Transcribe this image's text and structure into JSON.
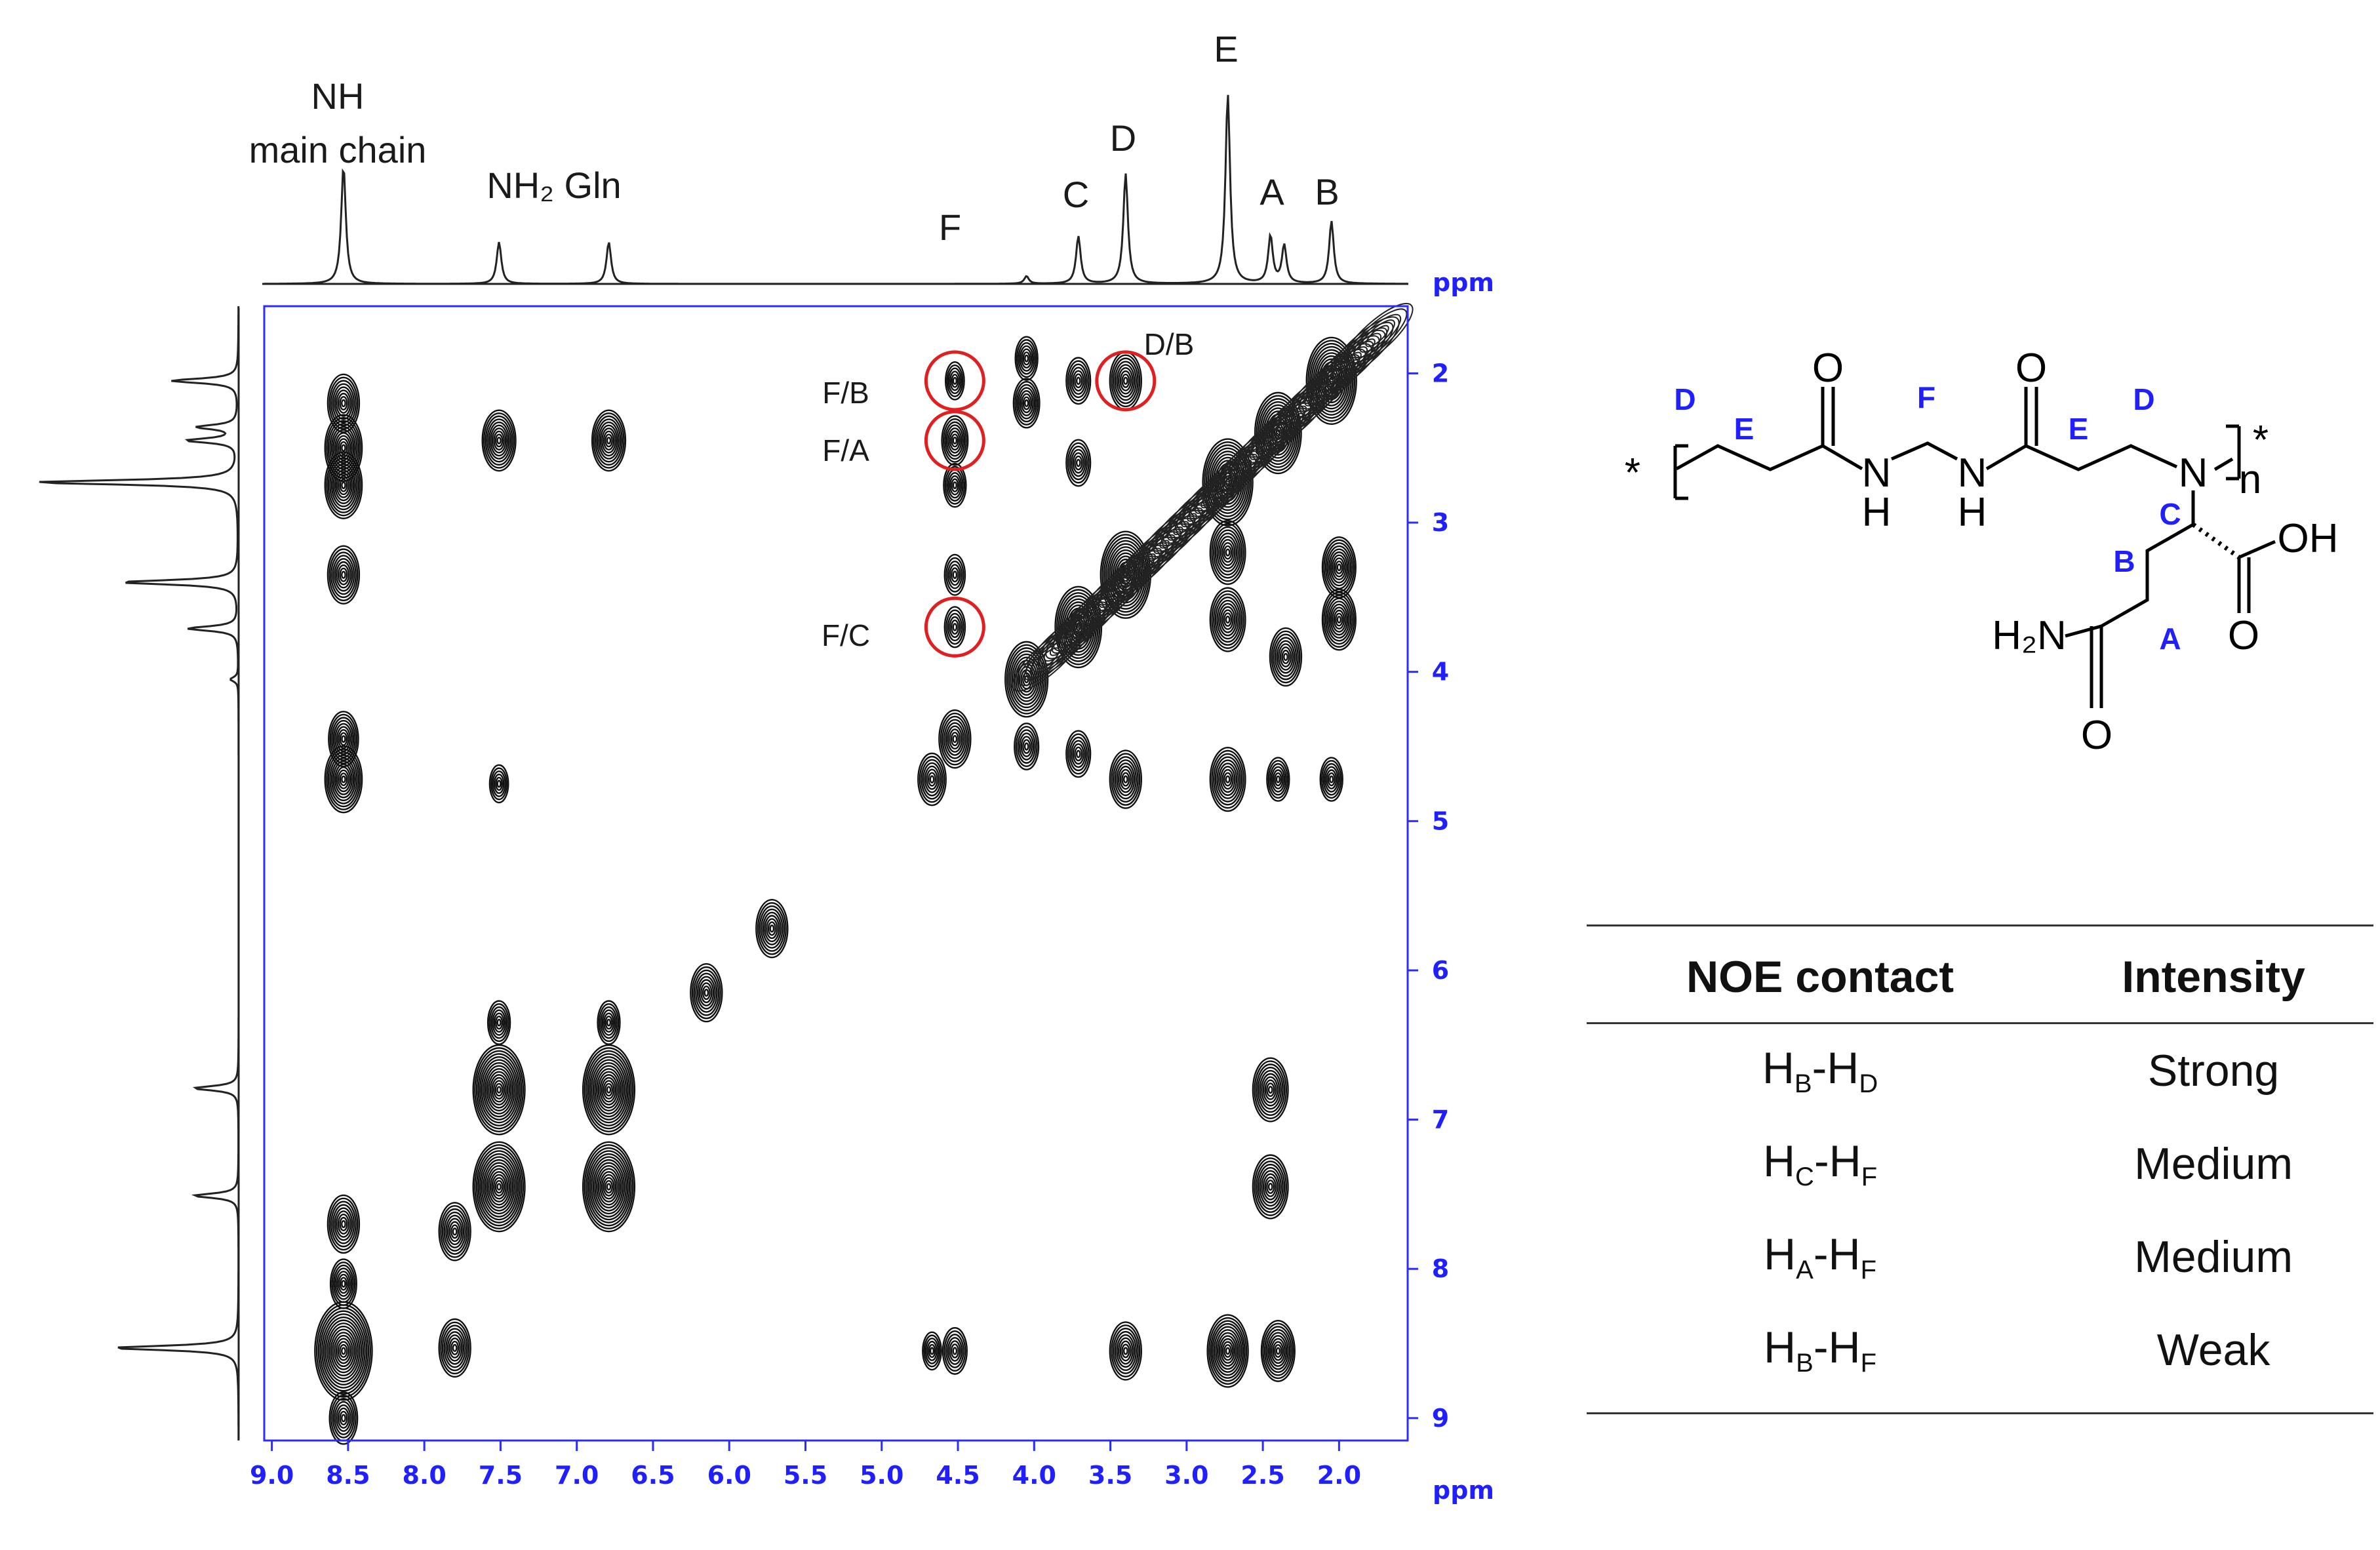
{
  "chart_data": {
    "type": "noesy-2d-nmr",
    "axis_unit_label": "ppm",
    "x_ticks": [
      "9.0",
      "8.5",
      "8.0",
      "7.5",
      "7.0",
      "6.5",
      "6.0",
      "5.5",
      "5.0",
      "4.5",
      "4.0",
      "3.5",
      "3.0",
      "2.5",
      "2.0"
    ],
    "y_ticks": [
      "2",
      "3",
      "4",
      "5",
      "6",
      "7",
      "8",
      "9"
    ],
    "xlim": [
      9.05,
      1.55
    ],
    "ylim": [
      1.55,
      9.15
    ],
    "projection_peaks": [
      {
        "ppm": 8.53,
        "height": 0.62
      },
      {
        "ppm": 7.51,
        "height": 0.22
      },
      {
        "ppm": 6.79,
        "height": 0.22
      },
      {
        "ppm": 4.05,
        "height": 0.04
      },
      {
        "ppm": 3.71,
        "height": 0.25
      },
      {
        "ppm": 3.4,
        "height": 0.58
      },
      {
        "ppm": 2.73,
        "height": 1.0
      },
      {
        "ppm": 2.45,
        "height": 0.25
      },
      {
        "ppm": 2.36,
        "height": 0.2
      },
      {
        "ppm": 2.05,
        "height": 0.33
      }
    ],
    "peak_labels": [
      {
        "text": "NH",
        "ppm": 8.5
      },
      {
        "text": "main chain",
        "ppm": 8.5
      },
      {
        "text": "NH₂ Gln",
        "ppm": 7.15
      },
      {
        "text": "F",
        "ppm": 4.52
      },
      {
        "text": "C",
        "ppm": 3.71
      },
      {
        "text": "D",
        "ppm": 3.4
      },
      {
        "text": "E",
        "ppm": 2.73
      },
      {
        "text": "A",
        "ppm": 2.4
      },
      {
        "text": "B",
        "ppm": 2.05
      }
    ],
    "cross_peaks": [
      {
        "x": 8.53,
        "y": 2.2,
        "s": 1
      },
      {
        "x": 8.53,
        "y": 2.5,
        "s": 1.3
      },
      {
        "x": 8.53,
        "y": 2.75,
        "s": 1.3
      },
      {
        "x": 8.53,
        "y": 3.35,
        "s": 1
      },
      {
        "x": 8.53,
        "y": 4.45,
        "s": 0.9
      },
      {
        "x": 8.53,
        "y": 4.72,
        "s": 1.3
      },
      {
        "x": 8.53,
        "y": 7.7,
        "s": 1
      },
      {
        "x": 8.53,
        "y": 8.1,
        "s": 0.7
      },
      {
        "x": 8.53,
        "y": 8.55,
        "s": 2.4
      },
      {
        "x": 8.53,
        "y": 9.0,
        "s": 0.8
      },
      {
        "x": 7.51,
        "y": 2.45,
        "s": 1.1
      },
      {
        "x": 6.79,
        "y": 2.45,
        "s": 1.1
      },
      {
        "x": 7.51,
        "y": 4.75,
        "s": 0.3
      },
      {
        "x": 7.51,
        "y": 6.35,
        "s": 0.5
      },
      {
        "x": 6.79,
        "y": 6.35,
        "s": 0.5
      },
      {
        "x": 7.51,
        "y": 6.8,
        "s": 2.1
      },
      {
        "x": 6.79,
        "y": 6.8,
        "s": 2.1
      },
      {
        "x": 7.51,
        "y": 7.45,
        "s": 2.1
      },
      {
        "x": 6.79,
        "y": 7.45,
        "s": 2.1
      },
      {
        "x": 7.8,
        "y": 7.75,
        "s": 1
      },
      {
        "x": 7.8,
        "y": 8.53,
        "s": 1
      },
      {
        "x": 6.15,
        "y": 6.15,
        "s": 1
      },
      {
        "x": 5.72,
        "y": 5.72,
        "s": 1
      },
      {
        "x": 4.52,
        "y": 2.05,
        "s": 0.3
      },
      {
        "x": 4.52,
        "y": 2.45,
        "s": 0.7
      },
      {
        "x": 4.52,
        "y": 2.75,
        "s": 0.5
      },
      {
        "x": 4.52,
        "y": 3.35,
        "s": 0.4
      },
      {
        "x": 4.52,
        "y": 3.7,
        "s": 0.4
      },
      {
        "x": 4.67,
        "y": 4.72,
        "s": 0.8
      },
      {
        "x": 4.52,
        "y": 4.45,
        "s": 1
      },
      {
        "x": 4.52,
        "y": 8.55,
        "s": 0.6
      },
      {
        "x": 4.67,
        "y": 8.55,
        "s": 0.3
      },
      {
        "x": 4.05,
        "y": 1.9,
        "s": 0.5
      },
      {
        "x": 4.05,
        "y": 2.2,
        "s": 0.7
      },
      {
        "x": 4.05,
        "y": 4.05,
        "s": 1.6
      },
      {
        "x": 4.05,
        "y": 4.5,
        "s": 0.6
      },
      {
        "x": 3.71,
        "y": 2.05,
        "s": 0.6
      },
      {
        "x": 3.71,
        "y": 2.6,
        "s": 0.6
      },
      {
        "x": 3.71,
        "y": 4.55,
        "s": 0.6
      },
      {
        "x": 3.4,
        "y": 2.05,
        "s": 1
      },
      {
        "x": 3.4,
        "y": 4.72,
        "s": 1
      },
      {
        "x": 3.4,
        "y": 8.55,
        "s": 1
      },
      {
        "x": 2.73,
        "y": 4.72,
        "s": 1.2
      },
      {
        "x": 2.73,
        "y": 8.55,
        "s": 1.5
      },
      {
        "x": 2.4,
        "y": 4.72,
        "s": 0.5
      },
      {
        "x": 2.05,
        "y": 4.72,
        "s": 0.5
      },
      {
        "x": 2.45,
        "y": 6.8,
        "s": 1.2
      },
      {
        "x": 2.45,
        "y": 7.45,
        "s": 1.2
      },
      {
        "x": 2.4,
        "y": 8.55,
        "s": 1.1
      },
      {
        "x": 2.0,
        "y": 3.3,
        "s": 1.1
      },
      {
        "x": 2.0,
        "y": 3.65,
        "s": 1.1
      },
      {
        "x": 2.35,
        "y": 3.9,
        "s": 1
      },
      {
        "x": 2.73,
        "y": 3.2,
        "s": 1.2
      },
      {
        "x": 2.73,
        "y": 3.65,
        "s": 1.2
      },
      {
        "x": 3.4,
        "y": 3.35,
        "s": 2
      },
      {
        "x": 3.71,
        "y": 3.7,
        "s": 1.8
      },
      {
        "x": 2.73,
        "y": 2.73,
        "s": 2
      },
      {
        "x": 2.05,
        "y": 2.05,
        "s": 2
      },
      {
        "x": 2.4,
        "y": 2.4,
        "s": 1.8
      }
    ],
    "circled_peaks": [
      {
        "label": "F/B",
        "x": 4.52,
        "y": 2.05
      },
      {
        "label": "F/A",
        "x": 4.52,
        "y": 2.45
      },
      {
        "label": "F/C",
        "x": 4.52,
        "y": 3.7
      },
      {
        "label": "D/B",
        "x": 3.4,
        "y": 2.05
      }
    ]
  },
  "structure": {
    "atoms": {
      "O_left": "O",
      "O_right": "O",
      "N1": "N",
      "H1": "H",
      "N2": "N",
      "H2": "H",
      "N3": "N",
      "n": "n",
      "star_left": "*",
      "star_right": "*",
      "OH": "OH",
      "O_acid": "O",
      "H2N": "H₂N",
      "O_amide": "O"
    },
    "site_labels": {
      "D1": "D",
      "E1": "E",
      "F": "F",
      "E2": "E",
      "D2": "D",
      "C": "C",
      "B": "B",
      "A": "A"
    }
  },
  "table": {
    "headers": [
      "NOE contact",
      "Intensity"
    ],
    "rows": [
      {
        "h1": "H",
        "s1": "B",
        "h2": "-H",
        "s2": "D",
        "intensity": "Strong"
      },
      {
        "h1": "H",
        "s1": "C",
        "h2": "-H",
        "s2": "F",
        "intensity": "Medium"
      },
      {
        "h1": "H",
        "s1": "A",
        "h2": "-H",
        "s2": "F",
        "intensity": "Medium"
      },
      {
        "h1": "H",
        "s1": "B",
        "h2": "-H",
        "s2": "F",
        "intensity": "Weak"
      }
    ]
  }
}
